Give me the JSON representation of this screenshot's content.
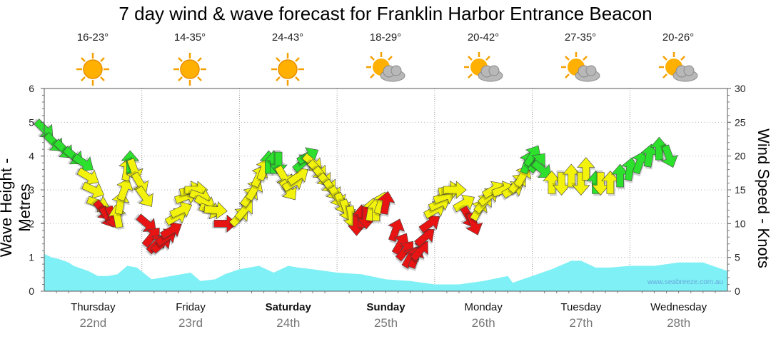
{
  "chart_data": {
    "type": "line",
    "title": "7 day wind & wave forecast for Franklin Harbor Entrance Beacon",
    "ylabel_left": "Wave Height - Metres",
    "ylabel_right": "Wind Speed - Knots",
    "ylim_left": [
      0,
      6
    ],
    "ylim_right": [
      0,
      30
    ],
    "yticks_left": [
      "0",
      "1",
      "2",
      "3",
      "4",
      "5",
      "6"
    ],
    "yticks_right": [
      "0",
      "5",
      "10",
      "15",
      "20",
      "25",
      "30"
    ],
    "days": [
      {
        "name": "Thursday",
        "date": "22nd",
        "bold": false,
        "temp": "16-23°",
        "icon": "sun"
      },
      {
        "name": "Friday",
        "date": "23rd",
        "bold": false,
        "temp": "14-35°",
        "icon": "sun"
      },
      {
        "name": "Saturday",
        "date": "24th",
        "bold": true,
        "temp": "24-43°",
        "icon": "sun"
      },
      {
        "name": "Sunday",
        "date": "25th",
        "bold": true,
        "temp": "18-29°",
        "icon": "sun-cloud"
      },
      {
        "name": "Monday",
        "date": "26th",
        "bold": false,
        "temp": "20-42°",
        "icon": "sun-cloud"
      },
      {
        "name": "Tuesday",
        "date": "27th",
        "bold": false,
        "temp": "27-35°",
        "icon": "sun-cloud"
      },
      {
        "name": "Wednesday",
        "date": "28th",
        "bold": false,
        "temp": "20-26°",
        "icon": "sun-cloud"
      }
    ],
    "wave_series": {
      "name": "Wave Height (m)",
      "x": [
        0,
        0.08,
        0.15,
        0.25,
        0.3,
        0.45,
        0.55,
        0.65,
        0.75,
        0.85,
        0.95,
        1.1,
        1.3,
        1.5,
        1.6,
        1.75,
        1.85,
        2.0,
        2.2,
        2.35,
        2.5,
        2.6,
        2.75,
        3.0,
        3.25,
        3.5,
        3.75,
        4.0,
        4.25,
        4.5,
        4.75,
        4.8,
        4.9,
        5.0,
        5.2,
        5.4,
        5.5,
        5.65,
        5.8,
        6.0,
        6.25,
        6.5,
        6.75,
        6.9,
        7.0
      ],
      "values": [
        1.1,
        1.0,
        0.95,
        0.85,
        0.75,
        0.6,
        0.45,
        0.45,
        0.5,
        0.75,
        0.7,
        0.35,
        0.45,
        0.55,
        0.3,
        0.35,
        0.5,
        0.65,
        0.75,
        0.55,
        0.75,
        0.7,
        0.65,
        0.55,
        0.5,
        0.35,
        0.3,
        0.2,
        0.2,
        0.3,
        0.45,
        0.25,
        0.35,
        0.45,
        0.65,
        0.9,
        0.9,
        0.7,
        0.7,
        0.75,
        0.75,
        0.85,
        0.85,
        0.7,
        0.6
      ]
    },
    "wind_arrows": [
      {
        "t": 0.0,
        "speed": 24,
        "dir": 135,
        "color": "green"
      },
      {
        "t": 0.1,
        "speed": 22,
        "dir": 135,
        "color": "green"
      },
      {
        "t": 0.2,
        "speed": 21,
        "dir": 135,
        "color": "green"
      },
      {
        "t": 0.3,
        "speed": 20,
        "dir": 130,
        "color": "green"
      },
      {
        "t": 0.4,
        "speed": 19,
        "dir": 125,
        "color": "green"
      },
      {
        "t": 0.45,
        "speed": 17,
        "dir": 120,
        "color": "yellow"
      },
      {
        "t": 0.5,
        "speed": 15,
        "dir": 115,
        "color": "yellow"
      },
      {
        "t": 0.55,
        "speed": 13,
        "dir": 110,
        "color": "yellow"
      },
      {
        "t": 0.6,
        "speed": 12,
        "dir": 140,
        "color": "red"
      },
      {
        "t": 0.65,
        "speed": 11,
        "dir": 150,
        "color": "red"
      },
      {
        "t": 0.7,
        "speed": 11,
        "dir": 160,
        "color": "red"
      },
      {
        "t": 0.75,
        "speed": 11,
        "dir": 350,
        "color": "yellow"
      },
      {
        "t": 0.78,
        "speed": 13,
        "dir": 10,
        "color": "yellow"
      },
      {
        "t": 0.82,
        "speed": 15,
        "dir": 20,
        "color": "yellow"
      },
      {
        "t": 0.85,
        "speed": 18,
        "dir": 10,
        "color": "yellow"
      },
      {
        "t": 0.88,
        "speed": 19,
        "dir": 0,
        "color": "green"
      },
      {
        "t": 0.92,
        "speed": 18,
        "dir": 160,
        "color": "yellow"
      },
      {
        "t": 0.98,
        "speed": 16,
        "dir": 150,
        "color": "yellow"
      },
      {
        "t": 1.03,
        "speed": 14,
        "dir": 145,
        "color": "yellow"
      },
      {
        "t": 1.05,
        "speed": 10,
        "dir": 130,
        "color": "red"
      },
      {
        "t": 1.1,
        "speed": 8,
        "dir": 40,
        "color": "red"
      },
      {
        "t": 1.15,
        "speed": 7,
        "dir": 45,
        "color": "red"
      },
      {
        "t": 1.2,
        "speed": 7,
        "dir": 50,
        "color": "red"
      },
      {
        "t": 1.25,
        "speed": 8,
        "dir": 55,
        "color": "red"
      },
      {
        "t": 1.3,
        "speed": 9,
        "dir": 60,
        "color": "red"
      },
      {
        "t": 1.35,
        "speed": 11,
        "dir": 60,
        "color": "yellow"
      },
      {
        "t": 1.4,
        "speed": 12,
        "dir": 65,
        "color": "yellow"
      },
      {
        "t": 1.45,
        "speed": 14,
        "dir": 70,
        "color": "yellow"
      },
      {
        "t": 1.5,
        "speed": 15,
        "dir": 75,
        "color": "yellow"
      },
      {
        "t": 1.55,
        "speed": 15,
        "dir": 90,
        "color": "yellow"
      },
      {
        "t": 1.6,
        "speed": 14,
        "dir": 110,
        "color": "yellow"
      },
      {
        "t": 1.65,
        "speed": 13,
        "dir": 120,
        "color": "yellow"
      },
      {
        "t": 1.7,
        "speed": 12,
        "dir": 110,
        "color": "yellow"
      },
      {
        "t": 1.75,
        "speed": 12,
        "dir": 95,
        "color": "yellow"
      },
      {
        "t": 1.85,
        "speed": 10,
        "dir": 90,
        "color": "red"
      },
      {
        "t": 2.0,
        "speed": 11,
        "dir": 45,
        "color": "yellow"
      },
      {
        "t": 2.05,
        "speed": 12,
        "dir": 40,
        "color": "yellow"
      },
      {
        "t": 2.1,
        "speed": 14,
        "dir": 35,
        "color": "yellow"
      },
      {
        "t": 2.15,
        "speed": 15,
        "dir": 30,
        "color": "yellow"
      },
      {
        "t": 2.2,
        "speed": 17,
        "dir": 25,
        "color": "yellow"
      },
      {
        "t": 2.25,
        "speed": 18,
        "dir": 20,
        "color": "yellow"
      },
      {
        "t": 2.3,
        "speed": 19,
        "dir": 0,
        "color": "green"
      },
      {
        "t": 2.35,
        "speed": 19,
        "dir": 0,
        "color": "green"
      },
      {
        "t": 2.4,
        "speed": 19,
        "dir": 180,
        "color": "green"
      },
      {
        "t": 2.45,
        "speed": 17,
        "dir": 150,
        "color": "yellow"
      },
      {
        "t": 2.5,
        "speed": 15,
        "dir": 145,
        "color": "yellow"
      },
      {
        "t": 2.55,
        "speed": 16,
        "dir": 60,
        "color": "yellow"
      },
      {
        "t": 2.6,
        "speed": 17,
        "dir": 55,
        "color": "yellow"
      },
      {
        "t": 2.65,
        "speed": 19,
        "dir": 50,
        "color": "green"
      },
      {
        "t": 2.7,
        "speed": 20,
        "dir": 60,
        "color": "green"
      },
      {
        "t": 2.75,
        "speed": 19,
        "dir": 130,
        "color": "yellow"
      },
      {
        "t": 2.8,
        "speed": 18,
        "dir": 135,
        "color": "yellow"
      },
      {
        "t": 2.85,
        "speed": 17,
        "dir": 140,
        "color": "yellow"
      },
      {
        "t": 2.9,
        "speed": 16,
        "dir": 140,
        "color": "yellow"
      },
      {
        "t": 2.95,
        "speed": 15,
        "dir": 145,
        "color": "yellow"
      },
      {
        "t": 3.0,
        "speed": 14,
        "dir": 150,
        "color": "yellow"
      },
      {
        "t": 3.05,
        "speed": 13,
        "dir": 155,
        "color": "yellow"
      },
      {
        "t": 3.1,
        "speed": 12,
        "dir": 160,
        "color": "yellow"
      },
      {
        "t": 3.15,
        "speed": 11,
        "dir": 170,
        "color": "yellow"
      },
      {
        "t": 3.2,
        "speed": 10,
        "dir": 180,
        "color": "red"
      },
      {
        "t": 3.25,
        "speed": 11,
        "dir": 0,
        "color": "red"
      },
      {
        "t": 3.3,
        "speed": 11,
        "dir": 180,
        "color": "red"
      },
      {
        "t": 3.35,
        "speed": 12,
        "dir": 10,
        "color": "yellow"
      },
      {
        "t": 3.4,
        "speed": 12,
        "dir": 0,
        "color": "yellow"
      },
      {
        "t": 3.45,
        "speed": 13,
        "dir": 20,
        "color": "yellow"
      },
      {
        "t": 3.5,
        "speed": 13,
        "dir": 10,
        "color": "red"
      },
      {
        "t": 3.6,
        "speed": 9,
        "dir": 20,
        "color": "red"
      },
      {
        "t": 3.65,
        "speed": 7,
        "dir": 30,
        "color": "red"
      },
      {
        "t": 3.7,
        "speed": 6,
        "dir": 40,
        "color": "red"
      },
      {
        "t": 3.75,
        "speed": 5,
        "dir": 30,
        "color": "red"
      },
      {
        "t": 3.8,
        "speed": 5,
        "dir": 20,
        "color": "red"
      },
      {
        "t": 3.85,
        "speed": 6,
        "dir": 40,
        "color": "red"
      },
      {
        "t": 3.9,
        "speed": 8,
        "dir": 50,
        "color": "red"
      },
      {
        "t": 3.95,
        "speed": 10,
        "dir": 55,
        "color": "red"
      },
      {
        "t": 4.0,
        "speed": 12,
        "dir": 60,
        "color": "yellow"
      },
      {
        "t": 4.05,
        "speed": 13,
        "dir": 65,
        "color": "yellow"
      },
      {
        "t": 4.1,
        "speed": 14,
        "dir": 70,
        "color": "yellow"
      },
      {
        "t": 4.15,
        "speed": 15,
        "dir": 80,
        "color": "yellow"
      },
      {
        "t": 4.2,
        "speed": 15,
        "dir": 90,
        "color": "yellow"
      },
      {
        "t": 4.3,
        "speed": 13,
        "dir": 60,
        "color": "yellow"
      },
      {
        "t": 4.35,
        "speed": 11,
        "dir": 150,
        "color": "red"
      },
      {
        "t": 4.4,
        "speed": 10,
        "dir": 160,
        "color": "red"
      },
      {
        "t": 4.45,
        "speed": 12,
        "dir": 30,
        "color": "yellow"
      },
      {
        "t": 4.5,
        "speed": 13,
        "dir": 40,
        "color": "yellow"
      },
      {
        "t": 4.55,
        "speed": 14,
        "dir": 50,
        "color": "yellow"
      },
      {
        "t": 4.6,
        "speed": 15,
        "dir": 60,
        "color": "yellow"
      },
      {
        "t": 4.7,
        "speed": 15,
        "dir": 70,
        "color": "yellow"
      },
      {
        "t": 4.8,
        "speed": 15,
        "dir": 60,
        "color": "yellow"
      },
      {
        "t": 4.85,
        "speed": 16,
        "dir": 40,
        "color": "yellow"
      },
      {
        "t": 4.9,
        "speed": 17,
        "dir": 30,
        "color": "yellow"
      },
      {
        "t": 4.95,
        "speed": 19,
        "dir": 20,
        "color": "green"
      },
      {
        "t": 5.0,
        "speed": 20,
        "dir": 30,
        "color": "green"
      },
      {
        "t": 5.05,
        "speed": 19,
        "dir": 40,
        "color": "green"
      },
      {
        "t": 5.1,
        "speed": 18,
        "dir": 130,
        "color": "green"
      },
      {
        "t": 5.2,
        "speed": 16,
        "dir": 0,
        "color": "yellow"
      },
      {
        "t": 5.3,
        "speed": 16,
        "dir": 180,
        "color": "yellow"
      },
      {
        "t": 5.4,
        "speed": 17,
        "dir": 0,
        "color": "yellow"
      },
      {
        "t": 5.5,
        "speed": 16,
        "dir": 180,
        "color": "yellow"
      },
      {
        "t": 5.55,
        "speed": 18,
        "dir": 0,
        "color": "yellow"
      },
      {
        "t": 5.65,
        "speed": 16,
        "dir": 0,
        "color": "green"
      },
      {
        "t": 5.7,
        "speed": 16,
        "dir": 180,
        "color": "yellow"
      },
      {
        "t": 5.8,
        "speed": 16,
        "dir": 0,
        "color": "yellow"
      },
      {
        "t": 5.9,
        "speed": 17,
        "dir": 0,
        "color": "green"
      },
      {
        "t": 6.0,
        "speed": 18,
        "dir": 10,
        "color": "green"
      },
      {
        "t": 6.1,
        "speed": 19,
        "dir": 20,
        "color": "green"
      },
      {
        "t": 6.2,
        "speed": 20,
        "dir": 10,
        "color": "green"
      },
      {
        "t": 6.3,
        "speed": 21,
        "dir": 0,
        "color": "green"
      },
      {
        "t": 6.4,
        "speed": 20,
        "dir": 160,
        "color": "green"
      }
    ]
  },
  "watermark": "www.seabreeze.com.au",
  "colors": {
    "green": "#2ee02e",
    "yellow": "#f2f20d",
    "red": "#e81414",
    "wave": "#7ff0f5",
    "grid": "#999999"
  }
}
